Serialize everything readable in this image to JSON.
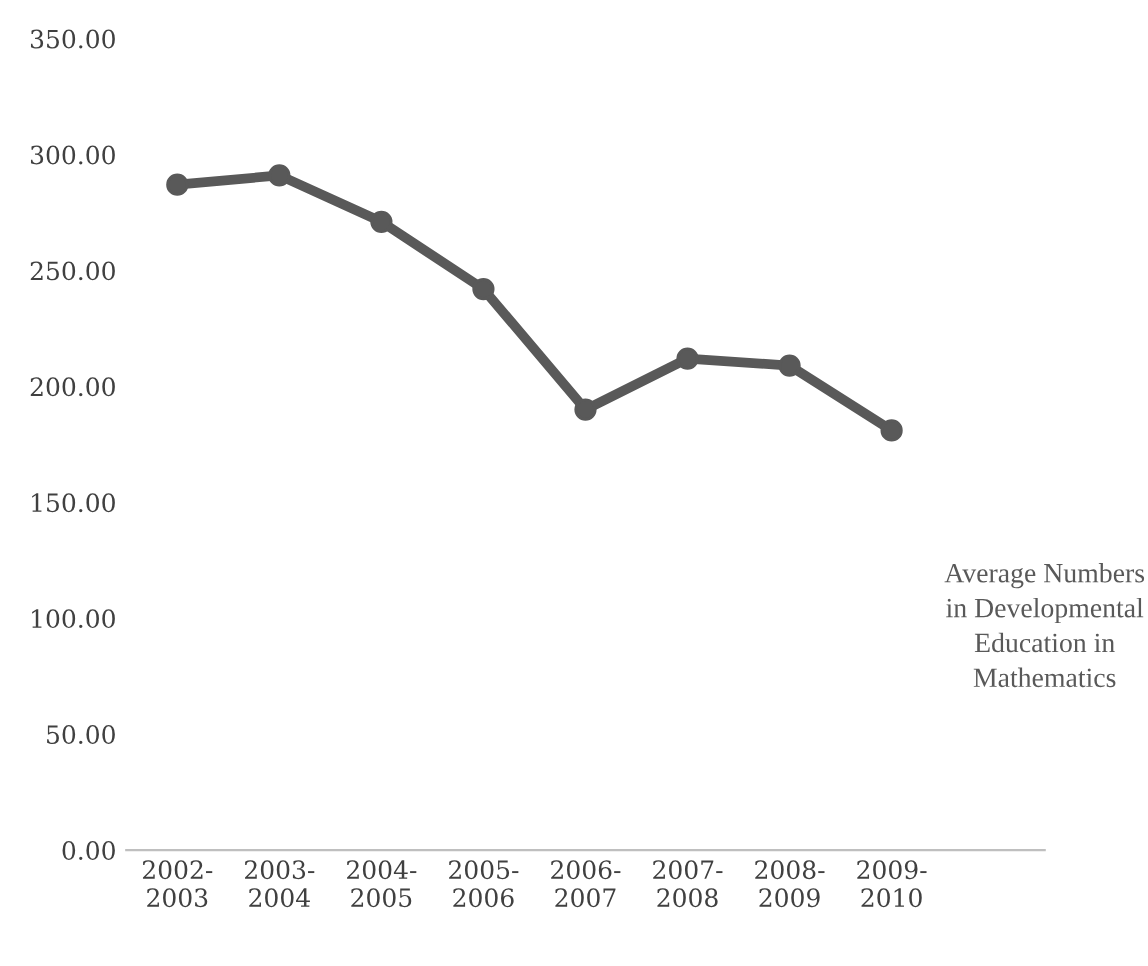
{
  "chart_data": {
    "type": "line",
    "categories": [
      "2002-\n2003",
      "2003-\n2004",
      "2004-\n2005",
      "2005-\n2006",
      "2006-\n2007",
      "2007-\n2008",
      "2008-\n2009",
      "2009-\n2010",
      null
    ],
    "series": [
      {
        "name": "Average Numbers in Developmental Education in Mathematics",
        "color": "#595959",
        "values": [
          287,
          291,
          271,
          242,
          190,
          212,
          209,
          181,
          null
        ]
      }
    ],
    "ylim": [
      0,
      350
    ],
    "yticks": [
      {
        "value": 0,
        "label": "0.00"
      },
      {
        "value": 50,
        "label": "50.00"
      },
      {
        "value": 100,
        "label": "100.00"
      },
      {
        "value": 150,
        "label": "150.00"
      },
      {
        "value": 200,
        "label": "200.00"
      },
      {
        "value": 250,
        "label": "250.00"
      },
      {
        "value": 300,
        "label": "300.00"
      },
      {
        "value": 350,
        "label": "350.00"
      }
    ],
    "grid": false,
    "marker": "circle",
    "line_style": "solid"
  }
}
